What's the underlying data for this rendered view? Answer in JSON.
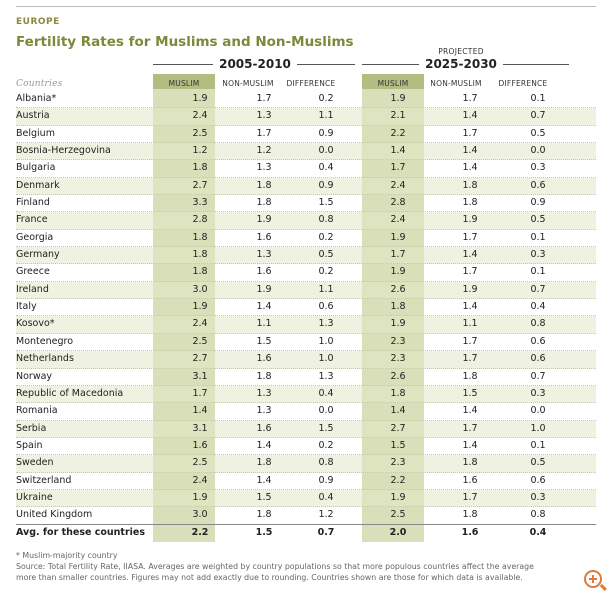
{
  "region": "EUROPE",
  "title": "Fertility Rates for Muslims and Non-Muslims",
  "projected_label": "PROJECTED",
  "periods": [
    "2005-2010",
    "2025-2030"
  ],
  "columns": {
    "countries": "Countries",
    "muslim": "MUSLIM",
    "non_muslim": "NON-MUSLIM",
    "difference": "DIFFERENCE"
  },
  "chart_data": {
    "type": "table",
    "title": "Fertility Rates for Muslims and Non-Muslims",
    "column_groups": [
      "2005-2010",
      "2025-2030"
    ],
    "fields": [
      "MUSLIM",
      "NON-MUSLIM",
      "DIFFERENCE",
      "MUSLIM",
      "NON-MUSLIM",
      "DIFFERENCE"
    ],
    "rows": [
      {
        "country": "Albania*",
        "values": [
          "1.9",
          "1.7",
          "0.2",
          "1.9",
          "1.7",
          "0.1"
        ]
      },
      {
        "country": "Austria",
        "values": [
          "2.4",
          "1.3",
          "1.1",
          "2.1",
          "1.4",
          "0.7"
        ]
      },
      {
        "country": "Belgium",
        "values": [
          "2.5",
          "1.7",
          "0.9",
          "2.2",
          "1.7",
          "0.5"
        ]
      },
      {
        "country": "Bosnia-Herzegovina",
        "values": [
          "1.2",
          "1.2",
          "0.0",
          "1.4",
          "1.4",
          "0.0"
        ]
      },
      {
        "country": "Bulgaria",
        "values": [
          "1.8",
          "1.3",
          "0.4",
          "1.7",
          "1.4",
          "0.3"
        ]
      },
      {
        "country": "Denmark",
        "values": [
          "2.7",
          "1.8",
          "0.9",
          "2.4",
          "1.8",
          "0.6"
        ]
      },
      {
        "country": "Finland",
        "values": [
          "3.3",
          "1.8",
          "1.5",
          "2.8",
          "1.8",
          "0.9"
        ]
      },
      {
        "country": "France",
        "values": [
          "2.8",
          "1.9",
          "0.8",
          "2.4",
          "1.9",
          "0.5"
        ]
      },
      {
        "country": "Georgia",
        "values": [
          "1.8",
          "1.6",
          "0.2",
          "1.9",
          "1.7",
          "0.1"
        ]
      },
      {
        "country": "Germany",
        "values": [
          "1.8",
          "1.3",
          "0.5",
          "1.7",
          "1.4",
          "0.3"
        ]
      },
      {
        "country": "Greece",
        "values": [
          "1.8",
          "1.6",
          "0.2",
          "1.9",
          "1.7",
          "0.1"
        ]
      },
      {
        "country": "Ireland",
        "values": [
          "3.0",
          "1.9",
          "1.1",
          "2.6",
          "1.9",
          "0.7"
        ]
      },
      {
        "country": "Italy",
        "values": [
          "1.9",
          "1.4",
          "0.6",
          "1.8",
          "1.4",
          "0.4"
        ]
      },
      {
        "country": "Kosovo*",
        "values": [
          "2.4",
          "1.1",
          "1.3",
          "1.9",
          "1.1",
          "0.8"
        ]
      },
      {
        "country": "Montenegro",
        "values": [
          "2.5",
          "1.5",
          "1.0",
          "2.3",
          "1.7",
          "0.6"
        ]
      },
      {
        "country": "Netherlands",
        "values": [
          "2.7",
          "1.6",
          "1.0",
          "2.3",
          "1.7",
          "0.6"
        ]
      },
      {
        "country": "Norway",
        "values": [
          "3.1",
          "1.8",
          "1.3",
          "2.6",
          "1.8",
          "0.7"
        ]
      },
      {
        "country": "Republic of Macedonia",
        "values": [
          "1.7",
          "1.3",
          "0.4",
          "1.8",
          "1.5",
          "0.3"
        ]
      },
      {
        "country": "Romania",
        "values": [
          "1.4",
          "1.3",
          "0.0",
          "1.4",
          "1.4",
          "0.0"
        ]
      },
      {
        "country": "Serbia",
        "values": [
          "3.1",
          "1.6",
          "1.5",
          "2.7",
          "1.7",
          "1.0"
        ]
      },
      {
        "country": "Spain",
        "values": [
          "1.6",
          "1.4",
          "0.2",
          "1.5",
          "1.4",
          "0.1"
        ]
      },
      {
        "country": "Sweden",
        "values": [
          "2.5",
          "1.8",
          "0.8",
          "2.3",
          "1.8",
          "0.5"
        ]
      },
      {
        "country": "Switzerland",
        "values": [
          "2.4",
          "1.4",
          "0.9",
          "2.2",
          "1.6",
          "0.6"
        ]
      },
      {
        "country": "Ukraine",
        "values": [
          "1.9",
          "1.5",
          "0.4",
          "1.9",
          "1.7",
          "0.3"
        ]
      },
      {
        "country": "United Kingdom",
        "values": [
          "3.0",
          "1.8",
          "1.2",
          "2.5",
          "1.8",
          "0.8"
        ]
      }
    ],
    "average": {
      "label": "Avg. for these countries",
      "values": [
        "2.2",
        "1.5",
        "0.7",
        "2.0",
        "1.6",
        "0.4"
      ]
    }
  },
  "footnotes": [
    "* Muslim-majority country",
    "Source: Total Fertility Rate, IIASA. Averages are weighted by country populations so that more populous countries affect the average more than smaller countries. Figures may not add exactly due to rounding. Countries shown are those for which data is available."
  ],
  "zoom_icon": "zoom-in-icon",
  "colors": {
    "accent": "#7a8a3a",
    "band": "#d9dfb8",
    "band_head": "#b3bd82"
  }
}
